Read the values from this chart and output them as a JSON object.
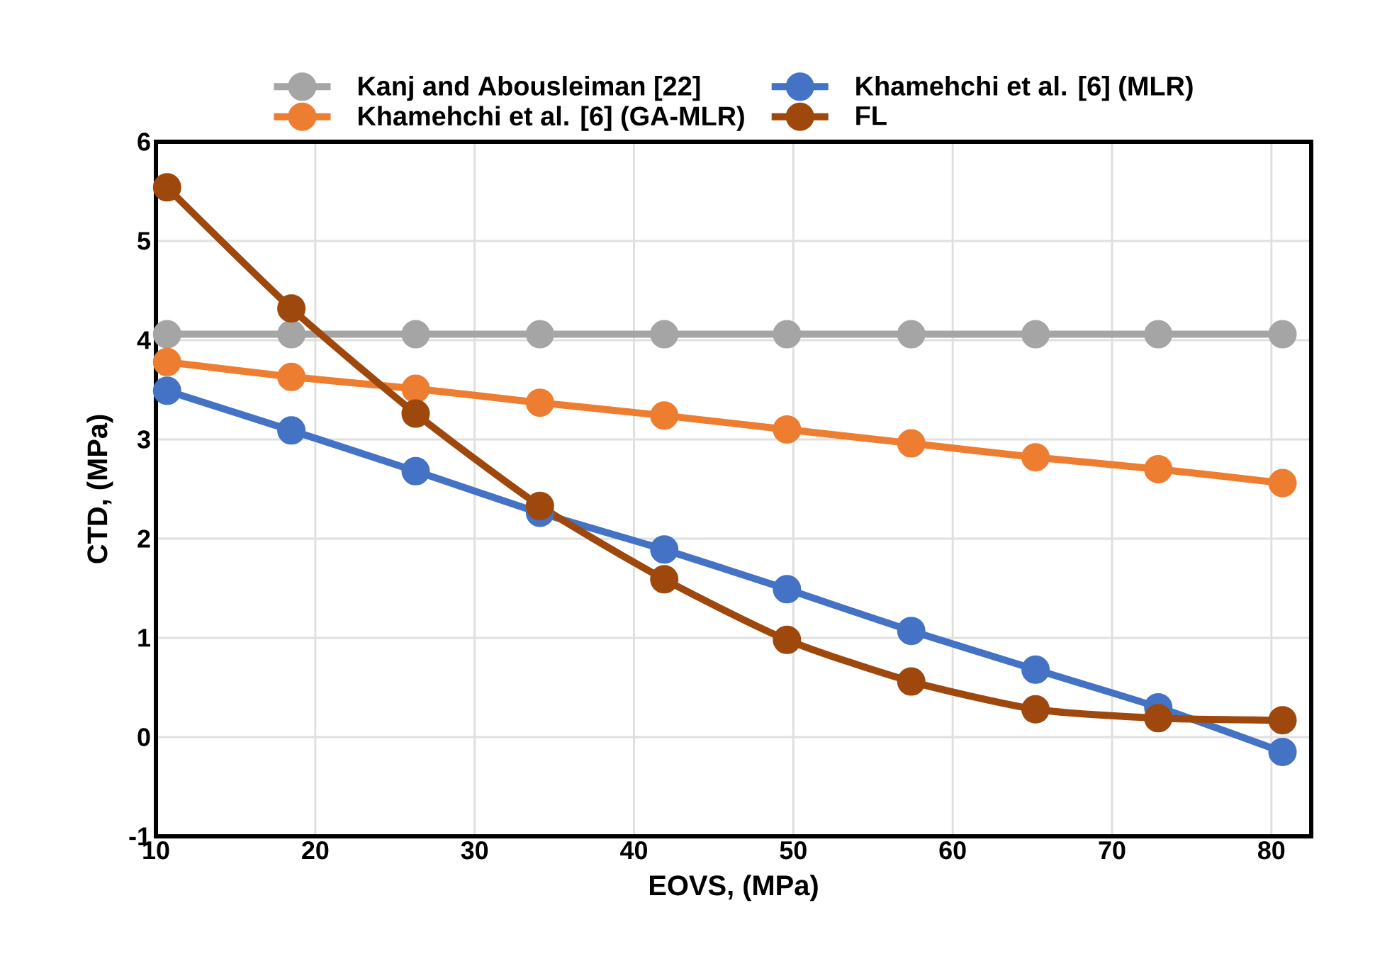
{
  "chart_data": {
    "type": "line",
    "xlabel": "EOVS, (MPa)",
    "ylabel": "CTD, (MPa)",
    "x": [
      10.7,
      18.5,
      26.3,
      34.1,
      41.9,
      49.6,
      57.4,
      65.2,
      72.9,
      80.7
    ],
    "series": [
      {
        "name": "Kanj and Abousleiman [22]",
        "color": "#a5a5a5",
        "values": [
          4.06,
          4.06,
          4.06,
          4.06,
          4.06,
          4.06,
          4.06,
          4.06,
          4.06,
          4.06
        ]
      },
      {
        "name": "Khamehchi et al. [6] (MLR)",
        "color": "#4472c4",
        "values": [
          3.49,
          3.09,
          2.68,
          2.26,
          1.89,
          1.49,
          1.07,
          0.68,
          0.3,
          -0.15
        ]
      },
      {
        "name": "Khamehchi et al. [6] (GA-MLR)",
        "color": "#ed7d31",
        "values": [
          3.78,
          3.63,
          3.51,
          3.37,
          3.24,
          3.1,
          2.96,
          2.82,
          2.7,
          2.56
        ]
      },
      {
        "name": "FL",
        "color": "#9e480e",
        "values": [
          5.54,
          4.32,
          3.26,
          2.33,
          1.59,
          0.98,
          0.56,
          0.28,
          0.19,
          0.17
        ]
      }
    ],
    "xlim": [
      10,
      82.5
    ],
    "ylim": [
      -1,
      6
    ],
    "xticks": [
      10,
      20,
      30,
      40,
      50,
      60,
      70,
      80
    ],
    "yticks": [
      -1,
      0,
      1,
      2,
      3,
      4,
      5,
      6
    ],
    "grid": true,
    "legend": "top",
    "marker": "circle",
    "line_style": "solid"
  }
}
